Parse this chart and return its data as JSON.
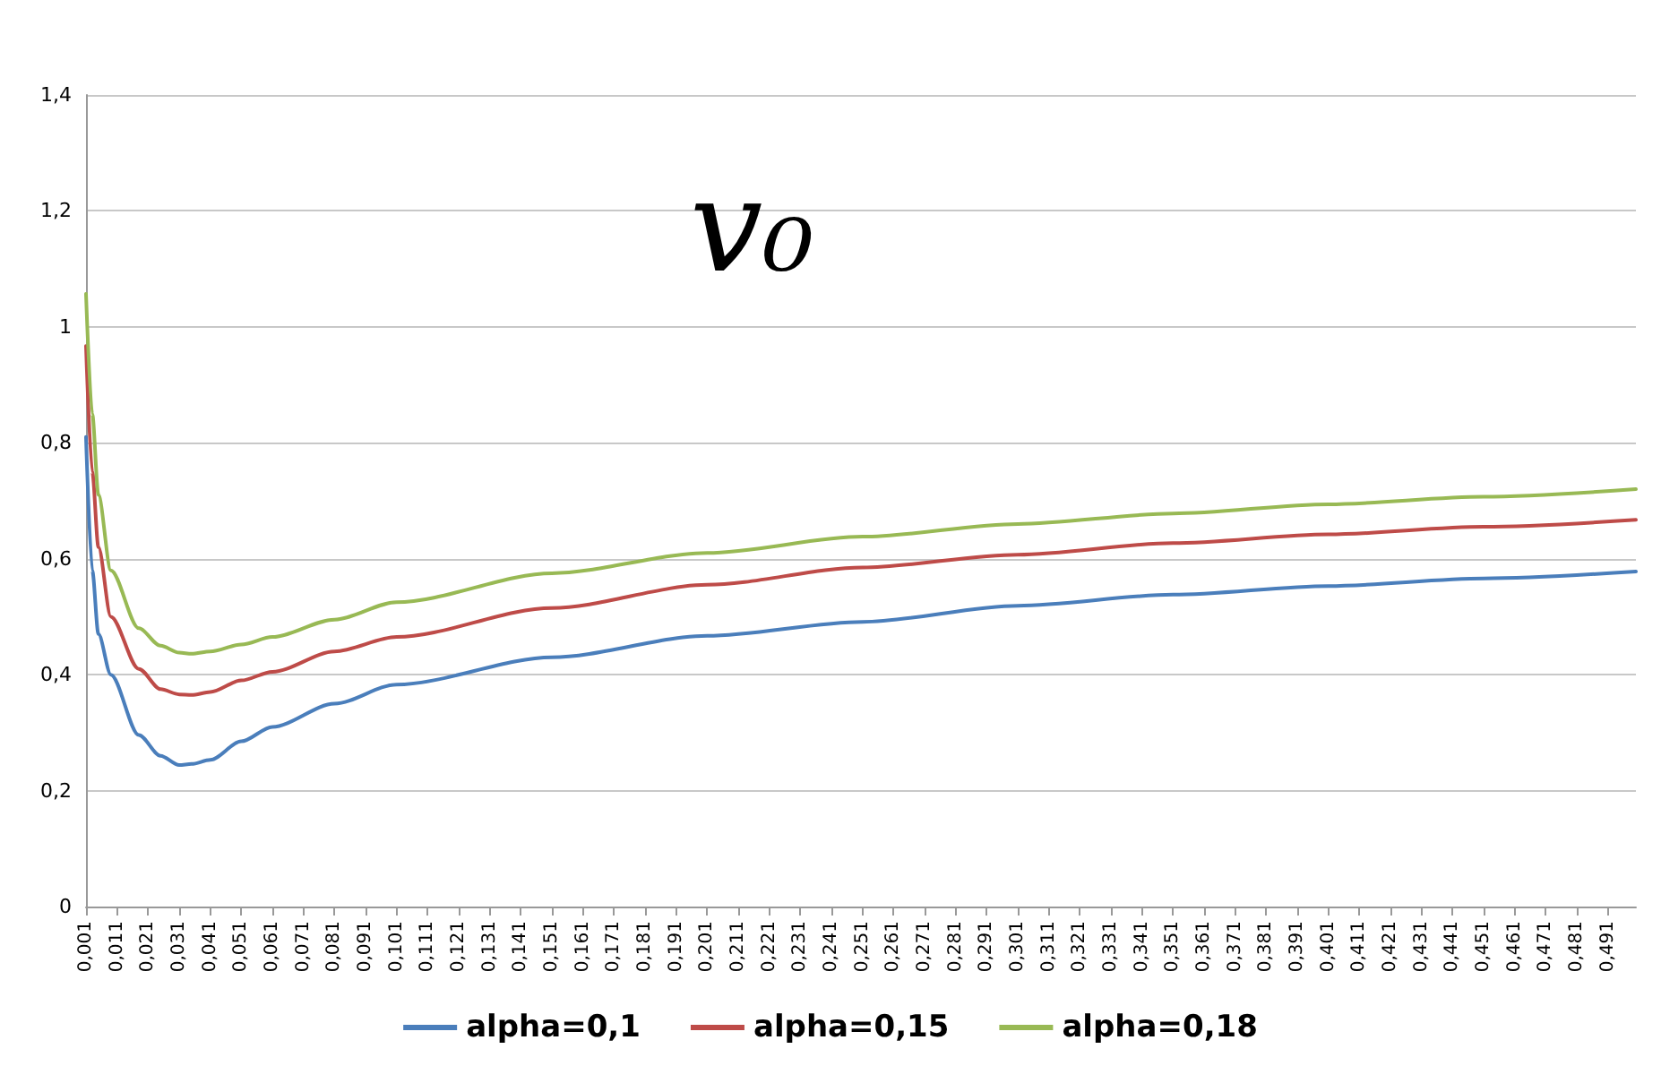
{
  "chart_data": {
    "type": "line",
    "title": "v₀",
    "x": [
      0.001,
      0.003,
      0.005,
      0.009,
      0.018,
      0.025,
      0.031,
      0.035,
      0.041,
      0.051,
      0.061,
      0.081,
      0.101,
      0.151,
      0.201,
      0.251,
      0.301,
      0.351,
      0.401,
      0.451,
      0.5
    ],
    "series": [
      {
        "name": "alpha=0,1",
        "color": "#4a7ebb",
        "values": [
          0.81,
          0.58,
          0.47,
          0.4,
          0.296,
          0.26,
          0.244,
          0.246,
          0.253,
          0.285,
          0.31,
          0.35,
          0.383,
          0.43,
          0.467,
          0.491,
          0.519,
          0.538,
          0.553,
          0.566,
          0.578
        ]
      },
      {
        "name": "alpha=0,15",
        "color": "#be4b48",
        "values": [
          0.967,
          0.75,
          0.62,
          0.5,
          0.41,
          0.375,
          0.366,
          0.365,
          0.37,
          0.39,
          0.405,
          0.44,
          0.465,
          0.515,
          0.555,
          0.585,
          0.607,
          0.627,
          0.642,
          0.655,
          0.667
        ]
      },
      {
        "name": "alpha=0,18",
        "color": "#98b954",
        "values": [
          1.057,
          0.85,
          0.71,
          0.58,
          0.48,
          0.45,
          0.438,
          0.436,
          0.44,
          0.452,
          0.465,
          0.495,
          0.525,
          0.575,
          0.61,
          0.638,
          0.66,
          0.678,
          0.694,
          0.707,
          0.72
        ]
      }
    ],
    "xlim": [
      0.001,
      0.5
    ],
    "xticks": [
      {
        "value": 0.001,
        "label": "0,001"
      },
      {
        "value": 0.011,
        "label": "0,011"
      },
      {
        "value": 0.021,
        "label": "0,021"
      },
      {
        "value": 0.031,
        "label": "0,031"
      },
      {
        "value": 0.041,
        "label": "0,041"
      },
      {
        "value": 0.051,
        "label": "0,051"
      },
      {
        "value": 0.061,
        "label": "0,061"
      },
      {
        "value": 0.071,
        "label": "0,071"
      },
      {
        "value": 0.081,
        "label": "0,081"
      },
      {
        "value": 0.091,
        "label": "0,091"
      },
      {
        "value": 0.101,
        "label": "0,101"
      },
      {
        "value": 0.111,
        "label": "0,111"
      },
      {
        "value": 0.121,
        "label": "0,121"
      },
      {
        "value": 0.131,
        "label": "0,131"
      },
      {
        "value": 0.141,
        "label": "0,141"
      },
      {
        "value": 0.151,
        "label": "0,151"
      },
      {
        "value": 0.161,
        "label": "0,161"
      },
      {
        "value": 0.171,
        "label": "0,171"
      },
      {
        "value": 0.181,
        "label": "0,181"
      },
      {
        "value": 0.191,
        "label": "0,191"
      },
      {
        "value": 0.201,
        "label": "0,201"
      },
      {
        "value": 0.211,
        "label": "0,211"
      },
      {
        "value": 0.221,
        "label": "0,221"
      },
      {
        "value": 0.231,
        "label": "0,231"
      },
      {
        "value": 0.241,
        "label": "0,241"
      },
      {
        "value": 0.251,
        "label": "0,251"
      },
      {
        "value": 0.261,
        "label": "0,261"
      },
      {
        "value": 0.271,
        "label": "0,271"
      },
      {
        "value": 0.281,
        "label": "0,281"
      },
      {
        "value": 0.291,
        "label": "0,291"
      },
      {
        "value": 0.301,
        "label": "0,301"
      },
      {
        "value": 0.311,
        "label": "0,311"
      },
      {
        "value": 0.321,
        "label": "0,321"
      },
      {
        "value": 0.331,
        "label": "0,331"
      },
      {
        "value": 0.341,
        "label": "0,341"
      },
      {
        "value": 0.351,
        "label": "0,351"
      },
      {
        "value": 0.361,
        "label": "0,361"
      },
      {
        "value": 0.371,
        "label": "0,371"
      },
      {
        "value": 0.381,
        "label": "0,381"
      },
      {
        "value": 0.391,
        "label": "0,391"
      },
      {
        "value": 0.401,
        "label": "0,401"
      },
      {
        "value": 0.411,
        "label": "0,411"
      },
      {
        "value": 0.421,
        "label": "0,421"
      },
      {
        "value": 0.431,
        "label": "0,431"
      },
      {
        "value": 0.441,
        "label": "0,441"
      },
      {
        "value": 0.451,
        "label": "0,451"
      },
      {
        "value": 0.461,
        "label": "0,461"
      },
      {
        "value": 0.471,
        "label": "0,471"
      },
      {
        "value": 0.481,
        "label": "0,481"
      },
      {
        "value": 0.491,
        "label": "0,491"
      }
    ],
    "ylim": [
      0,
      1.4
    ],
    "yticks": [
      0,
      {
        "value": 0.2,
        "label": "0,2"
      },
      {
        "value": 0.4,
        "label": "0,4"
      },
      {
        "value": 0.6,
        "label": "0,6"
      },
      {
        "value": 0.8,
        "label": "0,8"
      },
      1,
      {
        "value": 1.2,
        "label": "1,2"
      },
      {
        "value": 1.4,
        "label": "1,4"
      }
    ],
    "grid": "y",
    "legend": "bottom",
    "marker": "none",
    "line_style": "solid"
  }
}
